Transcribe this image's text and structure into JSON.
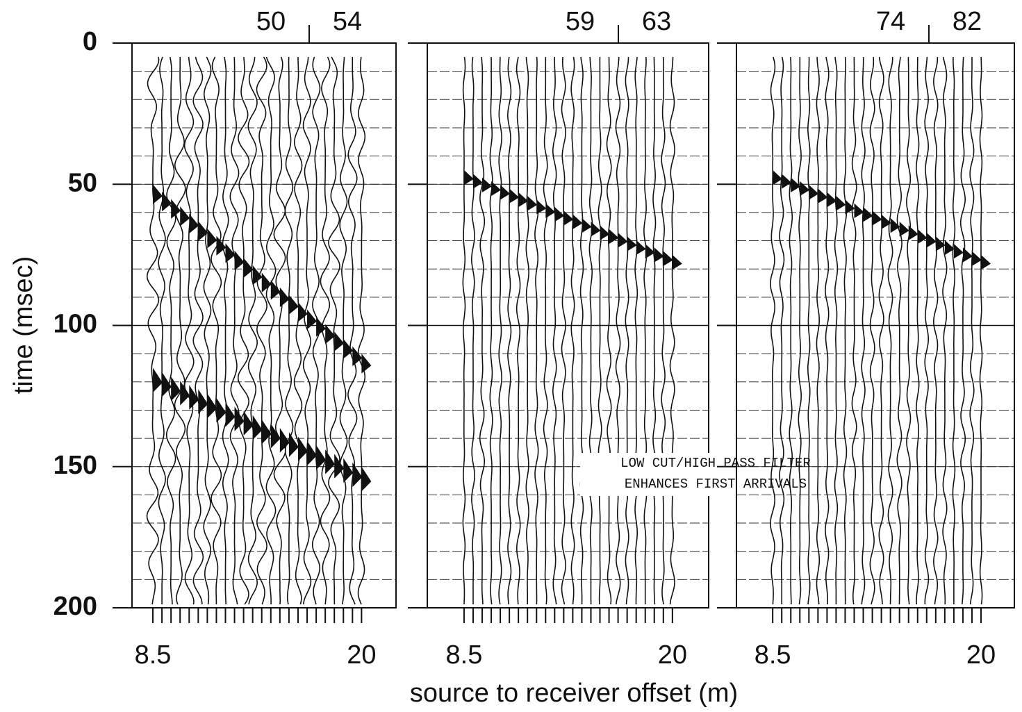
{
  "chart_data": [
    {
      "type": "seismic",
      "ylabel": "time (msec)",
      "top_labels": [
        "50",
        "54"
      ],
      "ylim": [
        200,
        0
      ],
      "yticks": [
        0,
        50,
        100,
        150,
        200
      ],
      "xlim": [
        7.35,
        21.9
      ],
      "xticks": [
        8.5,
        20
      ]
    },
    {
      "type": "seismic",
      "top_labels": [
        "59",
        "63"
      ],
      "ylim": [
        200,
        0
      ],
      "yticks": [
        0,
        50,
        100,
        150,
        200
      ],
      "xlim": [
        6.47,
        22.0
      ],
      "xticks": [
        8.5,
        20
      ],
      "xlabel": "source to receiver offset (m)",
      "annotation": [
        "LOW CUT/HIGH PASS FILTER",
        "ENHANCES FIRST ARRIVALS"
      ]
    },
    {
      "type": "seismic",
      "top_labels": [
        "74",
        "82"
      ],
      "ylim": [
        200,
        0
      ],
      "yticks": [
        0,
        50,
        100,
        150,
        200
      ],
      "xlim": [
        6.5,
        21.84
      ],
      "xticks": [
        8.5,
        20
      ]
    }
  ]
}
